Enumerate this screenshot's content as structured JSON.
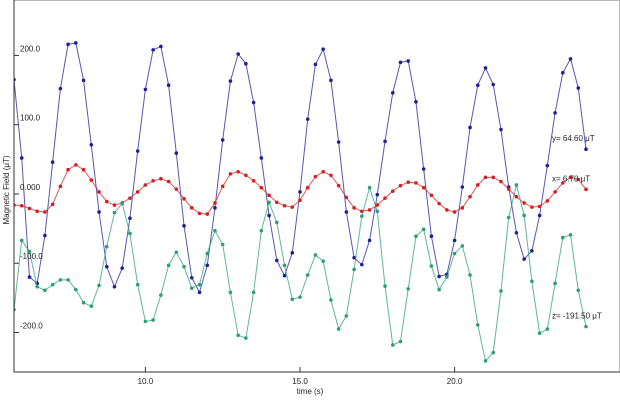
{
  "chart_data": {
    "type": "line",
    "x_label": "time (s)",
    "y_label": "Magnetic Field (μT)",
    "xlim": [
      5.75,
      25.35
    ],
    "ylim": [
      -257,
      280
    ],
    "xticks": [
      {
        "value": 10,
        "label": "10.0"
      },
      {
        "value": 15,
        "label": "15.0"
      },
      {
        "value": 20,
        "label": "20.0"
      }
    ],
    "yticks": [
      {
        "value": 200,
        "label": "200.0"
      },
      {
        "value": 100,
        "label": "100.0"
      },
      {
        "value": 0,
        "label": "0.000"
      },
      {
        "value": -100,
        "label": "-100.0"
      },
      {
        "value": -200,
        "label": "-200.0"
      }
    ],
    "grid": false,
    "x": [
      5.75,
      6.0,
      6.25,
      6.5,
      6.75,
      7.0,
      7.25,
      7.5,
      7.75,
      8.0,
      8.25,
      8.5,
      8.75,
      9.0,
      9.25,
      9.5,
      9.75,
      10.0,
      10.25,
      10.5,
      10.75,
      11.0,
      11.25,
      11.5,
      11.75,
      12.0,
      12.25,
      12.5,
      12.75,
      13.0,
      13.25,
      13.5,
      13.75,
      14.0,
      14.25,
      14.5,
      14.75,
      15.0,
      15.25,
      15.5,
      15.75,
      16.0,
      16.25,
      16.5,
      16.75,
      17.0,
      17.25,
      17.5,
      17.75,
      18.0,
      18.25,
      18.5,
      18.75,
      19.0,
      19.25,
      19.5,
      19.75,
      20.0,
      20.25,
      20.5,
      20.75,
      21.0,
      21.25,
      21.5,
      21.75,
      22.0,
      22.25,
      22.5,
      22.75,
      23.0,
      23.25,
      23.5,
      23.75,
      24.0,
      24.25
    ],
    "series": [
      {
        "label": "y= 64.60 μT",
        "color": "#1f1f9a",
        "values": [
          165,
          52,
          -120,
          -129,
          -60,
          46,
          152,
          216,
          218,
          164,
          71,
          -26,
          -105,
          -134,
          -107,
          -35,
          62,
          151,
          208,
          213,
          157,
          59,
          -46,
          -121,
          -142,
          -103,
          -20,
          78,
          163,
          202,
          188,
          132,
          52,
          -31,
          -96,
          -118,
          -85,
          3,
          108,
          187,
          209,
          164,
          75,
          -26,
          -92,
          -102,
          -67,
          -1,
          76,
          146,
          190,
          192,
          133,
          36,
          -61,
          -119,
          -116,
          -67,
          10,
          96,
          157,
          182,
          158,
          93,
          10,
          -56,
          -94,
          -82,
          -31,
          41,
          117,
          175,
          195,
          153,
          64.6
        ]
      },
      {
        "label": "x= 6.70 μT",
        "color": "#d42020",
        "values": [
          -16,
          -17,
          -21,
          -25,
          -26,
          -15,
          11,
          35,
          42,
          35,
          20,
          3,
          -11,
          -16,
          -13,
          -6,
          3,
          13,
          19,
          22,
          18,
          7,
          -7,
          -20,
          -28,
          -29,
          -13,
          11,
          29,
          32,
          27,
          19,
          9,
          -2,
          -12,
          -17,
          -19,
          -9,
          9,
          25,
          32,
          27,
          12,
          -5,
          -20,
          -25,
          -23,
          -16,
          -6,
          4,
          12,
          17,
          16,
          9,
          -2,
          -14,
          -23,
          -26,
          -20,
          -4,
          13,
          24,
          24,
          18,
          7,
          -4,
          -13,
          -19,
          -18,
          -10,
          3,
          16,
          24,
          21,
          6.7
        ]
      },
      {
        "label": "z= -191.50 μT",
        "color": "#2b9f75",
        "values": [
          -167,
          -67,
          -83,
          -134,
          -139,
          -131,
          -124,
          -124,
          -138,
          -157,
          -162,
          -132,
          -76,
          -27,
          -14,
          -57,
          -131,
          -184,
          -182,
          -146,
          -103,
          -84,
          -105,
          -136,
          -131,
          -86,
          -53,
          -73,
          -142,
          -204,
          -208,
          -142,
          -53,
          -12,
          -41,
          -103,
          -152,
          -149,
          -117,
          -88,
          -97,
          -153,
          -195,
          -176,
          -109,
          -32,
          9,
          -25,
          -133,
          -218,
          -213,
          -137,
          -61,
          -51,
          -104,
          -138,
          -120,
          -86,
          -75,
          -117,
          -189,
          -241,
          -229,
          -140,
          -34,
          13,
          -31,
          -126,
          -201,
          -195,
          -129,
          -63,
          -59,
          -139,
          -191.5
        ]
      }
    ]
  }
}
